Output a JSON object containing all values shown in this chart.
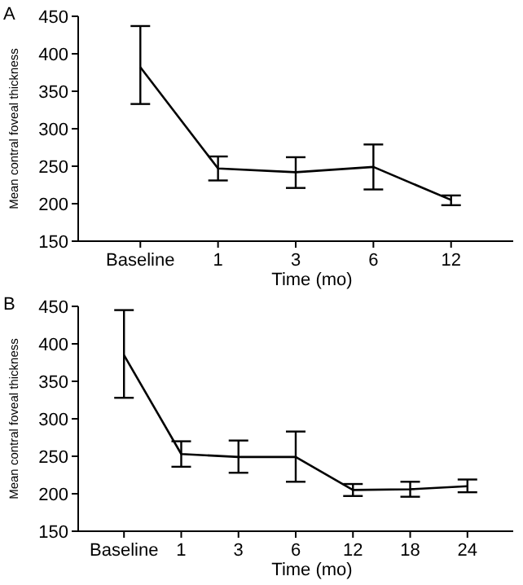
{
  "chart_data": [
    {
      "type": "line",
      "title": "A",
      "xlabel": "Time (mo)",
      "ylabel": "Mean contral foveal thickness",
      "categories": [
        "Baseline",
        "1",
        "3",
        "6",
        "12"
      ],
      "values": [
        382,
        247,
        242,
        249,
        205
      ],
      "errors": [
        [
          333,
          437
        ],
        [
          231,
          263
        ],
        [
          221,
          262
        ],
        [
          219,
          279
        ],
        [
          198,
          211
        ]
      ],
      "color": "#000000",
      "ylim": [
        150,
        450
      ],
      "yticks": [
        150,
        200,
        250,
        300,
        350,
        400,
        450
      ],
      "grid": false,
      "marker": "none",
      "line_style": "solid"
    },
    {
      "type": "line",
      "title": "B",
      "xlabel": "Time (mo)",
      "ylabel": "Mean contral foveal thickness",
      "categories": [
        "Baseline",
        "1",
        "3",
        "6",
        "12",
        "18",
        "24"
      ],
      "values": [
        385,
        253,
        249,
        249,
        205,
        206,
        210
      ],
      "errors": [
        [
          328,
          445
        ],
        [
          236,
          270
        ],
        [
          228,
          271
        ],
        [
          216,
          283
        ],
        [
          197,
          213
        ],
        [
          196,
          216
        ],
        [
          202,
          219
        ]
      ],
      "color": "#000000",
      "ylim": [
        150,
        450
      ],
      "yticks": [
        150,
        200,
        250,
        300,
        350,
        400,
        450
      ],
      "grid": false,
      "marker": "none",
      "line_style": "solid"
    }
  ]
}
